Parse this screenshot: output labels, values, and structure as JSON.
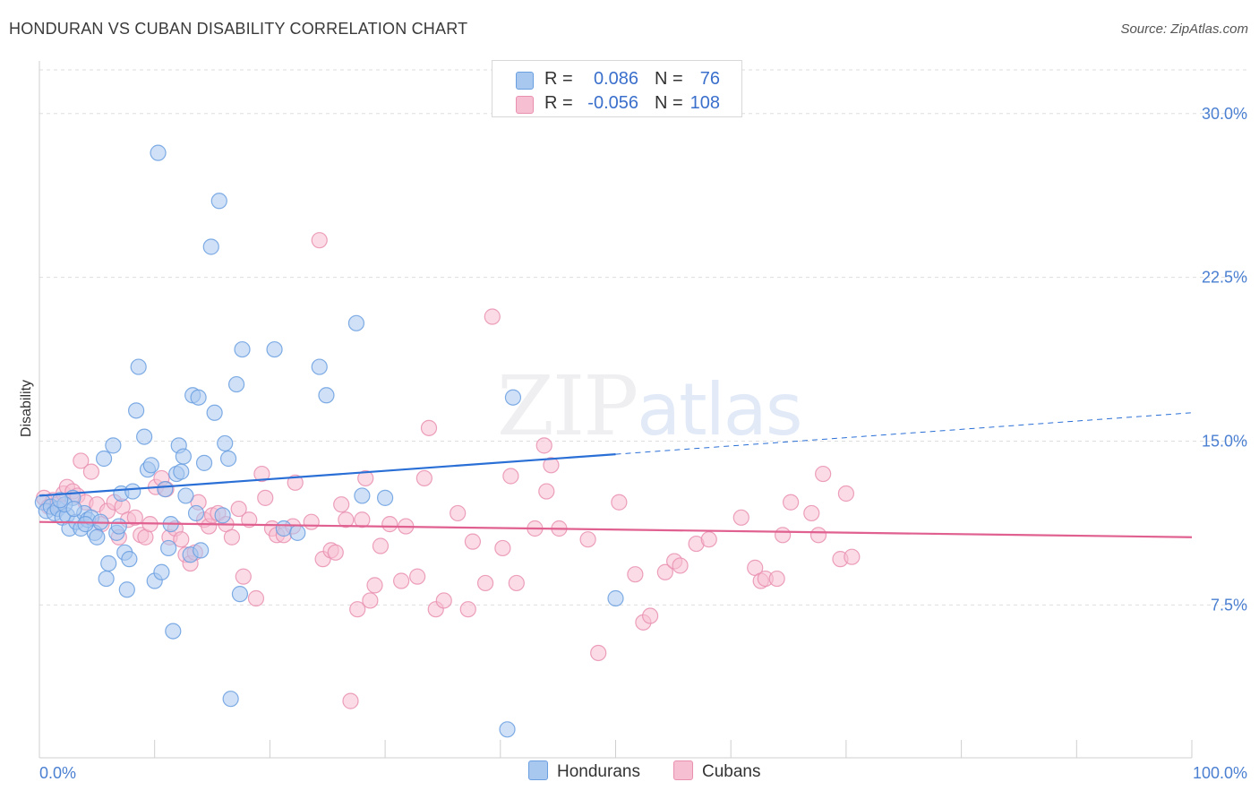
{
  "title": "HONDURAN VS CUBAN DISABILITY CORRELATION CHART",
  "source": "Source: ZipAtlas.com",
  "watermark": {
    "zip": "ZIP",
    "atlas": "atlas"
  },
  "legend": {
    "rows": [
      {
        "r_label": "R =",
        "r_value": "0.086",
        "n_label": "N =",
        "n_value": "76",
        "color": "#a9c8f0",
        "border": "#6a9fe0"
      },
      {
        "r_label": "R =",
        "r_value": "-0.056",
        "n_label": "N =",
        "n_value": "108",
        "color": "#f7bfd2",
        "border": "#e98fb0"
      }
    ]
  },
  "bottom_legend": [
    {
      "label": "Hondurans",
      "color": "#a9c8f0",
      "border": "#6a9fe0"
    },
    {
      "label": "Cubans",
      "color": "#f7bfd2",
      "border": "#e98fb0"
    }
  ],
  "chart_data": {
    "type": "scatter",
    "title": "HONDURAN VS CUBAN DISABILITY CORRELATION CHART",
    "xlabel": "",
    "ylabel": "Disability",
    "xlim": [
      0,
      100
    ],
    "ylim": [
      0.5,
      32.0
    ],
    "x_tick_labels": [
      "0.0%",
      "100.0%"
    ],
    "y_ticks": [
      7.5,
      15.0,
      22.5,
      30.0
    ],
    "y_tick_labels": [
      "7.5%",
      "15.0%",
      "22.5%",
      "30.0%"
    ],
    "grid": true,
    "legend_position": "top-center",
    "series": [
      {
        "name": "Hondurans",
        "color": "#6a9fe0",
        "fill": "#a9c8f0",
        "trend": {
          "x": [
            0,
            50,
            100
          ],
          "y": [
            12.5,
            14.4,
            16.3
          ],
          "solid_until": 50
        },
        "points": [
          [
            0.3,
            12.2
          ],
          [
            0.6,
            11.8
          ],
          [
            1.0,
            12.0
          ],
          [
            1.3,
            11.7
          ],
          [
            1.6,
            11.9
          ],
          [
            2.0,
            11.5
          ],
          [
            2.4,
            11.6
          ],
          [
            2.6,
            11.0
          ],
          [
            2.9,
            12.4
          ],
          [
            3.2,
            11.3
          ],
          [
            3.6,
            11.0
          ],
          [
            3.9,
            11.7
          ],
          [
            4.2,
            11.4
          ],
          [
            4.5,
            11.5
          ],
          [
            4.8,
            10.8
          ],
          [
            5.0,
            10.6
          ],
          [
            5.3,
            11.3
          ],
          [
            5.6,
            14.2
          ],
          [
            5.8,
            8.7
          ],
          [
            6.0,
            9.4
          ],
          [
            6.4,
            14.8
          ],
          [
            6.7,
            10.8
          ],
          [
            6.9,
            11.1
          ],
          [
            7.1,
            12.6
          ],
          [
            7.4,
            9.9
          ],
          [
            7.6,
            8.2
          ],
          [
            7.8,
            9.6
          ],
          [
            8.1,
            12.7
          ],
          [
            8.4,
            16.4
          ],
          [
            8.6,
            18.4
          ],
          [
            9.1,
            15.2
          ],
          [
            9.4,
            13.7
          ],
          [
            9.7,
            13.9
          ],
          [
            10.0,
            8.6
          ],
          [
            10.3,
            28.2
          ],
          [
            10.6,
            9.0
          ],
          [
            10.9,
            12.8
          ],
          [
            11.2,
            10.1
          ],
          [
            11.4,
            11.2
          ],
          [
            11.6,
            6.3
          ],
          [
            11.9,
            13.5
          ],
          [
            12.1,
            14.8
          ],
          [
            12.3,
            13.6
          ],
          [
            12.5,
            14.3
          ],
          [
            12.7,
            12.5
          ],
          [
            13.1,
            9.8
          ],
          [
            13.3,
            17.1
          ],
          [
            13.6,
            11.7
          ],
          [
            13.8,
            17.0
          ],
          [
            14.0,
            10.0
          ],
          [
            14.3,
            14.0
          ],
          [
            14.9,
            23.9
          ],
          [
            15.2,
            16.3
          ],
          [
            15.6,
            26.0
          ],
          [
            15.9,
            11.6
          ],
          [
            16.1,
            14.9
          ],
          [
            16.4,
            14.2
          ],
          [
            16.6,
            3.2
          ],
          [
            17.1,
            17.6
          ],
          [
            17.4,
            8.0
          ],
          [
            17.6,
            19.2
          ],
          [
            20.4,
            19.2
          ],
          [
            21.2,
            11.0
          ],
          [
            22.4,
            10.8
          ],
          [
            24.3,
            18.4
          ],
          [
            24.9,
            17.1
          ],
          [
            27.5,
            20.4
          ],
          [
            28.0,
            12.5
          ],
          [
            30.0,
            12.4
          ],
          [
            41.1,
            17.0
          ],
          [
            40.6,
            1.8
          ],
          [
            50.0,
            7.8
          ],
          [
            2.2,
            12.1
          ],
          [
            4.0,
            11.2
          ],
          [
            1.8,
            12.3
          ],
          [
            3.0,
            11.9
          ]
        ]
      },
      {
        "name": "Cubans",
        "color": "#e98fb0",
        "fill": "#f7bfd2",
        "trend": {
          "x": [
            0,
            100
          ],
          "y": [
            11.3,
            10.6
          ],
          "solid_until": 100
        },
        "points": [
          [
            0.4,
            12.4
          ],
          [
            0.8,
            12.0
          ],
          [
            1.2,
            12.3
          ],
          [
            1.6,
            12.1
          ],
          [
            2.1,
            12.6
          ],
          [
            2.4,
            12.9
          ],
          [
            2.9,
            12.7
          ],
          [
            3.3,
            12.5
          ],
          [
            3.6,
            14.1
          ],
          [
            4.0,
            12.2
          ],
          [
            4.5,
            13.6
          ],
          [
            5.0,
            12.1
          ],
          [
            5.4,
            11.2
          ],
          [
            5.9,
            11.8
          ],
          [
            6.5,
            12.2
          ],
          [
            6.9,
            10.6
          ],
          [
            7.2,
            12.0
          ],
          [
            7.7,
            11.4
          ],
          [
            8.3,
            11.5
          ],
          [
            8.8,
            10.7
          ],
          [
            9.2,
            10.6
          ],
          [
            9.6,
            11.2
          ],
          [
            10.1,
            12.9
          ],
          [
            10.6,
            13.3
          ],
          [
            11.0,
            12.8
          ],
          [
            11.3,
            10.6
          ],
          [
            11.8,
            11.0
          ],
          [
            12.3,
            10.5
          ],
          [
            12.7,
            9.8
          ],
          [
            13.1,
            9.4
          ],
          [
            13.5,
            9.9
          ],
          [
            13.8,
            12.2
          ],
          [
            14.3,
            11.4
          ],
          [
            14.7,
            11.1
          ],
          [
            15.0,
            11.6
          ],
          [
            15.5,
            11.7
          ],
          [
            16.2,
            11.2
          ],
          [
            16.7,
            10.6
          ],
          [
            17.3,
            11.9
          ],
          [
            17.7,
            8.8
          ],
          [
            18.2,
            11.4
          ],
          [
            18.8,
            7.8
          ],
          [
            19.3,
            13.5
          ],
          [
            19.6,
            12.4
          ],
          [
            20.2,
            11.0
          ],
          [
            20.6,
            10.7
          ],
          [
            21.2,
            10.7
          ],
          [
            22.0,
            11.1
          ],
          [
            22.2,
            13.1
          ],
          [
            23.6,
            11.3
          ],
          [
            24.3,
            24.2
          ],
          [
            24.6,
            9.6
          ],
          [
            25.3,
            10.0
          ],
          [
            25.7,
            9.9
          ],
          [
            26.2,
            12.1
          ],
          [
            26.6,
            11.4
          ],
          [
            27.0,
            3.1
          ],
          [
            27.6,
            7.3
          ],
          [
            28.0,
            11.4
          ],
          [
            28.3,
            13.3
          ],
          [
            28.7,
            7.7
          ],
          [
            29.1,
            8.4
          ],
          [
            29.6,
            10.2
          ],
          [
            30.4,
            11.2
          ],
          [
            31.4,
            8.6
          ],
          [
            31.8,
            11.1
          ],
          [
            32.8,
            8.8
          ],
          [
            33.4,
            13.3
          ],
          [
            33.8,
            15.6
          ],
          [
            34.4,
            7.3
          ],
          [
            35.1,
            7.7
          ],
          [
            36.3,
            11.7
          ],
          [
            37.2,
            7.3
          ],
          [
            37.6,
            10.4
          ],
          [
            38.7,
            8.5
          ],
          [
            39.3,
            20.7
          ],
          [
            40.2,
            10.1
          ],
          [
            40.9,
            13.4
          ],
          [
            41.4,
            8.5
          ],
          [
            43.0,
            11.0
          ],
          [
            43.8,
            14.8
          ],
          [
            44.0,
            12.7
          ],
          [
            44.4,
            13.9
          ],
          [
            45.1,
            11.0
          ],
          [
            47.6,
            10.5
          ],
          [
            48.5,
            5.3
          ],
          [
            50.3,
            12.2
          ],
          [
            51.7,
            8.9
          ],
          [
            52.4,
            6.7
          ],
          [
            53.0,
            7.0
          ],
          [
            54.3,
            9.0
          ],
          [
            55.1,
            9.5
          ],
          [
            55.6,
            9.3
          ],
          [
            57.0,
            10.3
          ],
          [
            58.1,
            10.5
          ],
          [
            60.9,
            11.5
          ],
          [
            62.1,
            9.2
          ],
          [
            62.6,
            8.6
          ],
          [
            63.0,
            8.7
          ],
          [
            64.0,
            8.7
          ],
          [
            64.5,
            10.7
          ],
          [
            65.2,
            12.2
          ],
          [
            67.0,
            11.7
          ],
          [
            67.6,
            10.7
          ],
          [
            68.0,
            13.5
          ],
          [
            69.5,
            9.6
          ],
          [
            70.0,
            12.6
          ],
          [
            70.5,
            9.7
          ]
        ]
      }
    ]
  }
}
